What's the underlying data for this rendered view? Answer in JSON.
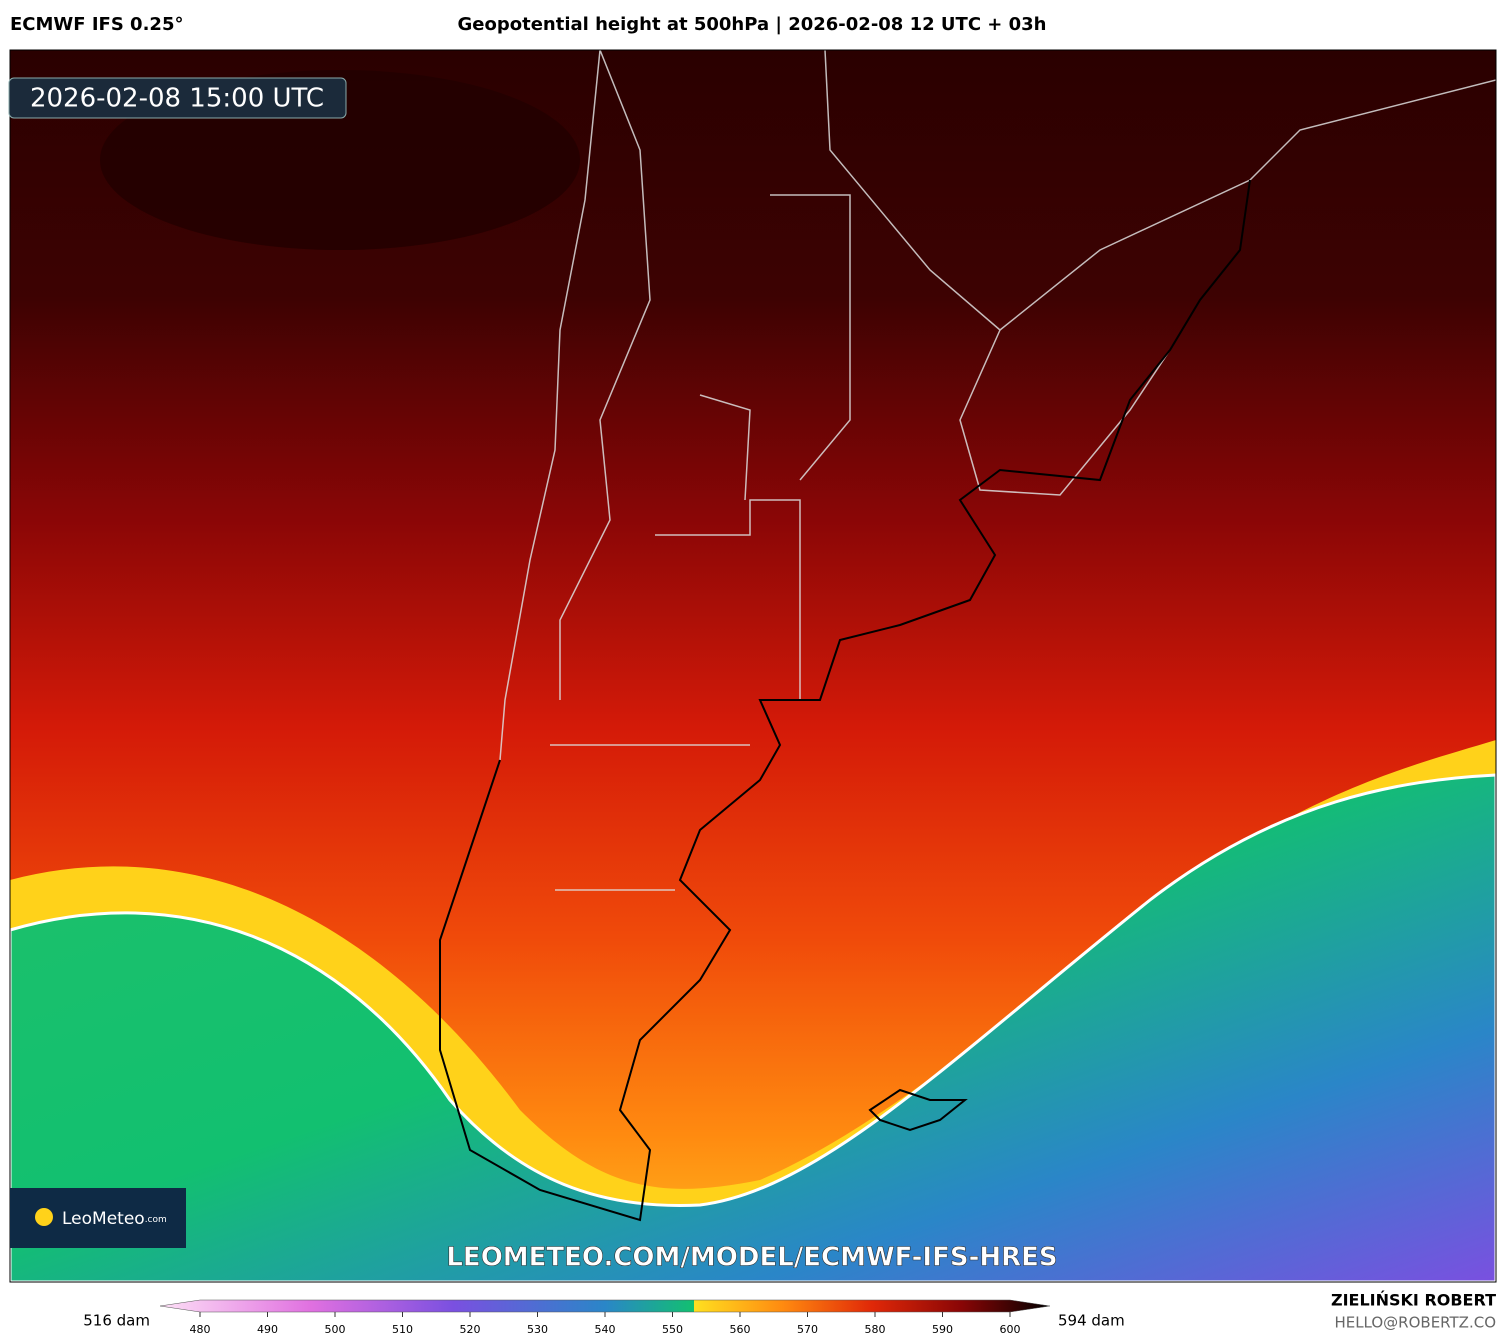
{
  "header": {
    "model": "ECMWF IFS 0.25°",
    "title": "Geopotential height at 500hPa | 2026-02-08 12 UTC + 03h"
  },
  "map": {
    "timestamp": "2026-02-08 15:00 UTC",
    "watermark": "LEOMETEO.COM/MODEL/ECMWF-IFS-HRES",
    "logo": "LeoMeteo",
    "logo_suffix": ".com"
  },
  "colorbar": {
    "min_label": "516 dam",
    "max_label": "594 dam",
    "ticks": [
      480,
      490,
      500,
      510,
      520,
      530,
      540,
      550,
      560,
      570,
      580,
      590,
      600
    ]
  },
  "footer": {
    "author": "ZIELIŃSKI ROBERT",
    "email": "HELLO@ROBERTZ.CO"
  }
}
